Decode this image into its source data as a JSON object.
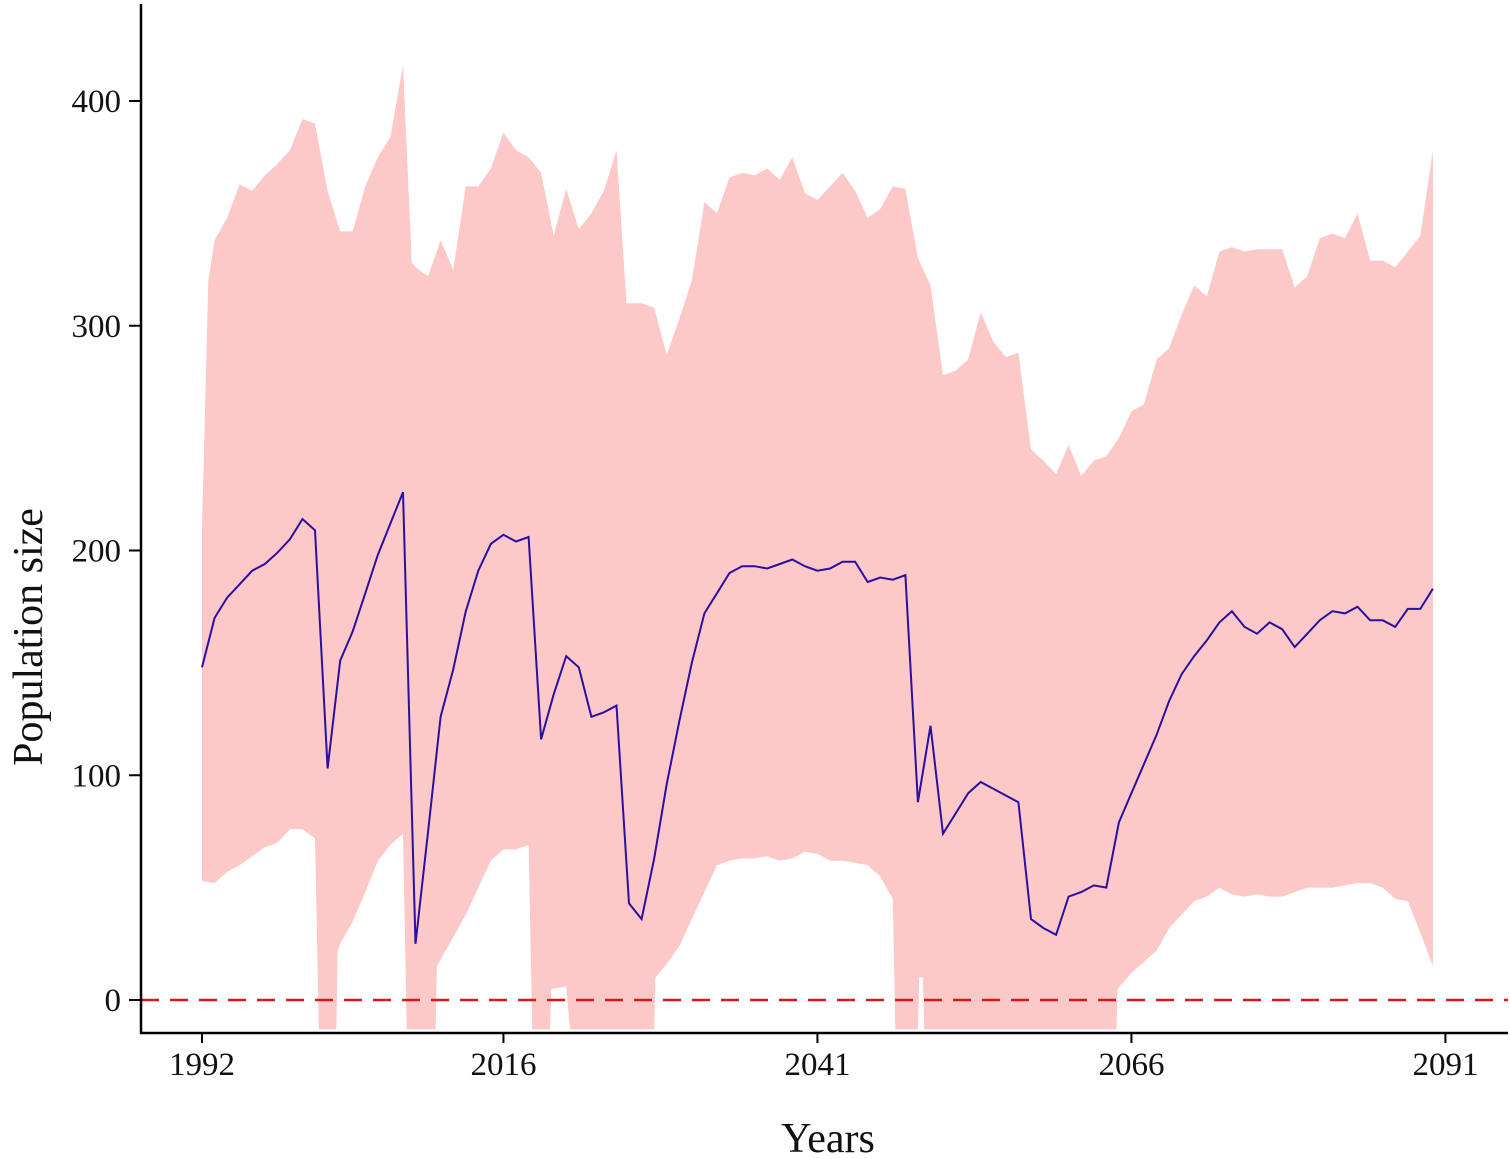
{
  "chart_data": {
    "type": "line",
    "title": "",
    "xlabel": "Years",
    "ylabel": "Population size",
    "xlim": [
      1987.5,
      2096
    ],
    "ylim": [
      -14,
      440
    ],
    "x_ticks": [
      1992,
      2016,
      2041,
      2066,
      2091
    ],
    "y_ticks": [
      0,
      100,
      200,
      300,
      400
    ],
    "grid": false,
    "legend": null,
    "reference_line": {
      "y": 0,
      "style": "dashed",
      "color": "#d7191c"
    },
    "colors": {
      "mean": "#2a0fa0",
      "band": "#fcc8c8",
      "axis": "#000000"
    },
    "series": [
      {
        "name": "mean",
        "kind": "line",
        "points": [
          [
            1992,
            148
          ],
          [
            1993,
            170
          ],
          [
            1994,
            179
          ],
          [
            1995,
            185
          ],
          [
            1996,
            191
          ],
          [
            1997,
            194
          ],
          [
            1998,
            199
          ],
          [
            1999,
            205
          ],
          [
            2000,
            214
          ],
          [
            2001,
            209
          ],
          [
            2002,
            103
          ],
          [
            2003,
            151
          ],
          [
            2004,
            164
          ],
          [
            2005,
            181
          ],
          [
            2006,
            198
          ],
          [
            2007,
            212
          ],
          [
            2008,
            226
          ],
          [
            2009,
            25
          ],
          [
            2010,
            75
          ],
          [
            2011,
            126
          ],
          [
            2012,
            147
          ],
          [
            2013,
            173
          ],
          [
            2014,
            191
          ],
          [
            2015,
            203
          ],
          [
            2016,
            207
          ],
          [
            2017,
            204
          ],
          [
            2018,
            206
          ],
          [
            2019,
            116
          ],
          [
            2020,
            136
          ],
          [
            2021,
            153
          ],
          [
            2022,
            148
          ],
          [
            2023,
            126
          ],
          [
            2024,
            128
          ],
          [
            2025,
            131
          ],
          [
            2026,
            43
          ],
          [
            2027,
            36
          ],
          [
            2028,
            63
          ],
          [
            2029,
            96
          ],
          [
            2030,
            124
          ],
          [
            2031,
            150
          ],
          [
            2032,
            172
          ],
          [
            2033,
            181
          ],
          [
            2034,
            190
          ],
          [
            2035,
            193
          ],
          [
            2036,
            193
          ],
          [
            2037,
            192
          ],
          [
            2038,
            194
          ],
          [
            2039,
            196
          ],
          [
            2040,
            193
          ],
          [
            2041,
            191
          ],
          [
            2042,
            192
          ],
          [
            2043,
            195
          ],
          [
            2044,
            195
          ],
          [
            2045,
            186
          ],
          [
            2046,
            188
          ],
          [
            2047,
            187
          ],
          [
            2048,
            189
          ],
          [
            2049,
            88
          ],
          [
            2050,
            122
          ],
          [
            2051,
            74
          ],
          [
            2052,
            83
          ],
          [
            2053,
            92
          ],
          [
            2054,
            97
          ],
          [
            2055,
            94
          ],
          [
            2056,
            91
          ],
          [
            2057,
            88
          ],
          [
            2058,
            36
          ],
          [
            2059,
            32
          ],
          [
            2060,
            29
          ],
          [
            2061,
            46
          ],
          [
            2062,
            48
          ],
          [
            2063,
            51
          ],
          [
            2064,
            50
          ],
          [
            2065,
            79
          ],
          [
            2066,
            92
          ],
          [
            2067,
            105
          ],
          [
            2068,
            118
          ],
          [
            2069,
            133
          ],
          [
            2070,
            145
          ],
          [
            2071,
            153
          ],
          [
            2072,
            160
          ],
          [
            2073,
            168
          ],
          [
            2074,
            173
          ],
          [
            2075,
            166
          ],
          [
            2076,
            163
          ],
          [
            2077,
            168
          ],
          [
            2078,
            165
          ],
          [
            2079,
            157
          ],
          [
            2080,
            163
          ],
          [
            2081,
            169
          ],
          [
            2082,
            173
          ],
          [
            2083,
            172
          ],
          [
            2084,
            175
          ],
          [
            2085,
            169
          ],
          [
            2086,
            169
          ],
          [
            2087,
            166
          ],
          [
            2088,
            174
          ],
          [
            2089,
            174
          ],
          [
            2090,
            183
          ]
        ]
      },
      {
        "name": "upper",
        "kind": "band_upper",
        "points": [
          [
            1992,
            210
          ],
          [
            1992.5,
            320
          ],
          [
            1993,
            338
          ],
          [
            1994,
            348
          ],
          [
            1995,
            363
          ],
          [
            1996,
            360
          ],
          [
            1997,
            367
          ],
          [
            1998,
            372
          ],
          [
            1999,
            378
          ],
          [
            2000,
            392
          ],
          [
            2001,
            390
          ],
          [
            2002,
            360
          ],
          [
            2003,
            342
          ],
          [
            2004,
            342
          ],
          [
            2005,
            362
          ],
          [
            2006,
            375
          ],
          [
            2007,
            384
          ],
          [
            2008,
            416
          ],
          [
            2008.7,
            328
          ],
          [
            2009,
            326
          ],
          [
            2010,
            322
          ],
          [
            2011,
            338
          ],
          [
            2012,
            325
          ],
          [
            2013,
            362
          ],
          [
            2014,
            362
          ],
          [
            2015,
            370
          ],
          [
            2016,
            386
          ],
          [
            2017,
            378
          ],
          [
            2018,
            375
          ],
          [
            2019,
            368
          ],
          [
            2020,
            340
          ],
          [
            2021,
            361
          ],
          [
            2022,
            343
          ],
          [
            2023,
            350
          ],
          [
            2024,
            360
          ],
          [
            2025,
            378
          ],
          [
            2025.8,
            310
          ],
          [
            2027,
            310
          ],
          [
            2028,
            308
          ],
          [
            2029,
            287
          ],
          [
            2030,
            303
          ],
          [
            2031,
            320
          ],
          [
            2032,
            355
          ],
          [
            2033,
            350
          ],
          [
            2034,
            366
          ],
          [
            2035,
            368
          ],
          [
            2036,
            367
          ],
          [
            2037,
            370
          ],
          [
            2038,
            365
          ],
          [
            2039,
            375
          ],
          [
            2040,
            359
          ],
          [
            2041,
            356
          ],
          [
            2042,
            362
          ],
          [
            2043,
            368
          ],
          [
            2044,
            360
          ],
          [
            2045,
            348
          ],
          [
            2046,
            352
          ],
          [
            2047,
            362
          ],
          [
            2048,
            361
          ],
          [
            2049,
            330
          ],
          [
            2050,
            318
          ],
          [
            2051,
            278
          ],
          [
            2052,
            280
          ],
          [
            2053,
            285
          ],
          [
            2054,
            306
          ],
          [
            2055,
            293
          ],
          [
            2056,
            286
          ],
          [
            2057,
            288
          ],
          [
            2058,
            245
          ],
          [
            2059,
            240
          ],
          [
            2060,
            234
          ],
          [
            2061,
            247
          ],
          [
            2062,
            233
          ],
          [
            2063,
            240
          ],
          [
            2064,
            242
          ],
          [
            2065,
            250
          ],
          [
            2066,
            262
          ],
          [
            2067,
            265
          ],
          [
            2068,
            285
          ],
          [
            2069,
            290
          ],
          [
            2070,
            305
          ],
          [
            2071,
            318
          ],
          [
            2072,
            313
          ],
          [
            2073,
            333
          ],
          [
            2074,
            335
          ],
          [
            2075,
            333
          ],
          [
            2076,
            334
          ],
          [
            2077,
            334
          ],
          [
            2078,
            334
          ],
          [
            2079,
            317
          ],
          [
            2080,
            322
          ],
          [
            2081,
            339
          ],
          [
            2082,
            341
          ],
          [
            2083,
            339
          ],
          [
            2084,
            350
          ],
          [
            2085,
            329
          ],
          [
            2086,
            329
          ],
          [
            2087,
            326
          ],
          [
            2088,
            333
          ],
          [
            2089,
            340
          ],
          [
            2090,
            378
          ]
        ]
      },
      {
        "name": "lower",
        "kind": "band_lower",
        "points": [
          [
            1992,
            53
          ],
          [
            1993,
            52
          ],
          [
            1994,
            57
          ],
          [
            1995,
            60
          ],
          [
            1996,
            64
          ],
          [
            1997,
            68
          ],
          [
            1998,
            70
          ],
          [
            1999,
            76
          ],
          [
            2000,
            76
          ],
          [
            2001,
            72
          ],
          [
            2001.3,
            -13
          ],
          [
            2002.7,
            -13
          ],
          [
            2002.8,
            22
          ],
          [
            2003,
            25
          ],
          [
            2004,
            35
          ],
          [
            2005,
            48
          ],
          [
            2006,
            62
          ],
          [
            2007,
            69
          ],
          [
            2008,
            74
          ],
          [
            2008.3,
            -13
          ],
          [
            2010.6,
            -13
          ],
          [
            2010.7,
            15
          ],
          [
            2011,
            18
          ],
          [
            2012,
            28
          ],
          [
            2013,
            38
          ],
          [
            2014,
            50
          ],
          [
            2015,
            62
          ],
          [
            2016,
            67
          ],
          [
            2017,
            67
          ],
          [
            2018,
            69
          ],
          [
            2018.3,
            -13
          ],
          [
            2019.7,
            -13
          ],
          [
            2019.8,
            5
          ],
          [
            2020,
            5
          ],
          [
            2021,
            6
          ],
          [
            2021.3,
            -13
          ],
          [
            2028,
            -13
          ],
          [
            2028.1,
            10
          ],
          [
            2029,
            16
          ],
          [
            2030,
            24
          ],
          [
            2031,
            36
          ],
          [
            2032,
            48
          ],
          [
            2033,
            60
          ],
          [
            2034,
            62
          ],
          [
            2035,
            63
          ],
          [
            2036,
            63
          ],
          [
            2037,
            64
          ],
          [
            2038,
            62
          ],
          [
            2039,
            63
          ],
          [
            2040,
            66
          ],
          [
            2041,
            65
          ],
          [
            2042,
            62
          ],
          [
            2043,
            62
          ],
          [
            2044,
            61
          ],
          [
            2045,
            60
          ],
          [
            2046,
            55
          ],
          [
            2047,
            45
          ],
          [
            2047.2,
            -13
          ],
          [
            2049,
            -13
          ],
          [
            2049.1,
            10
          ],
          [
            2049.4,
            10
          ],
          [
            2049.5,
            -13
          ],
          [
            2064.8,
            -13
          ],
          [
            2064.9,
            5
          ],
          [
            2066,
            12
          ],
          [
            2067,
            17
          ],
          [
            2068,
            22
          ],
          [
            2069,
            32
          ],
          [
            2070,
            38
          ],
          [
            2071,
            44
          ],
          [
            2072,
            46
          ],
          [
            2073,
            50
          ],
          [
            2074,
            47
          ],
          [
            2075,
            46
          ],
          [
            2076,
            47
          ],
          [
            2077,
            46
          ],
          [
            2078,
            46
          ],
          [
            2079,
            48
          ],
          [
            2080,
            50
          ],
          [
            2081,
            50
          ],
          [
            2082,
            50
          ],
          [
            2083,
            51
          ],
          [
            2084,
            52
          ],
          [
            2085,
            52
          ],
          [
            2086,
            50
          ],
          [
            2087,
            45
          ],
          [
            2088,
            44
          ],
          [
            2089,
            30
          ],
          [
            2090,
            15
          ]
        ]
      }
    ]
  }
}
